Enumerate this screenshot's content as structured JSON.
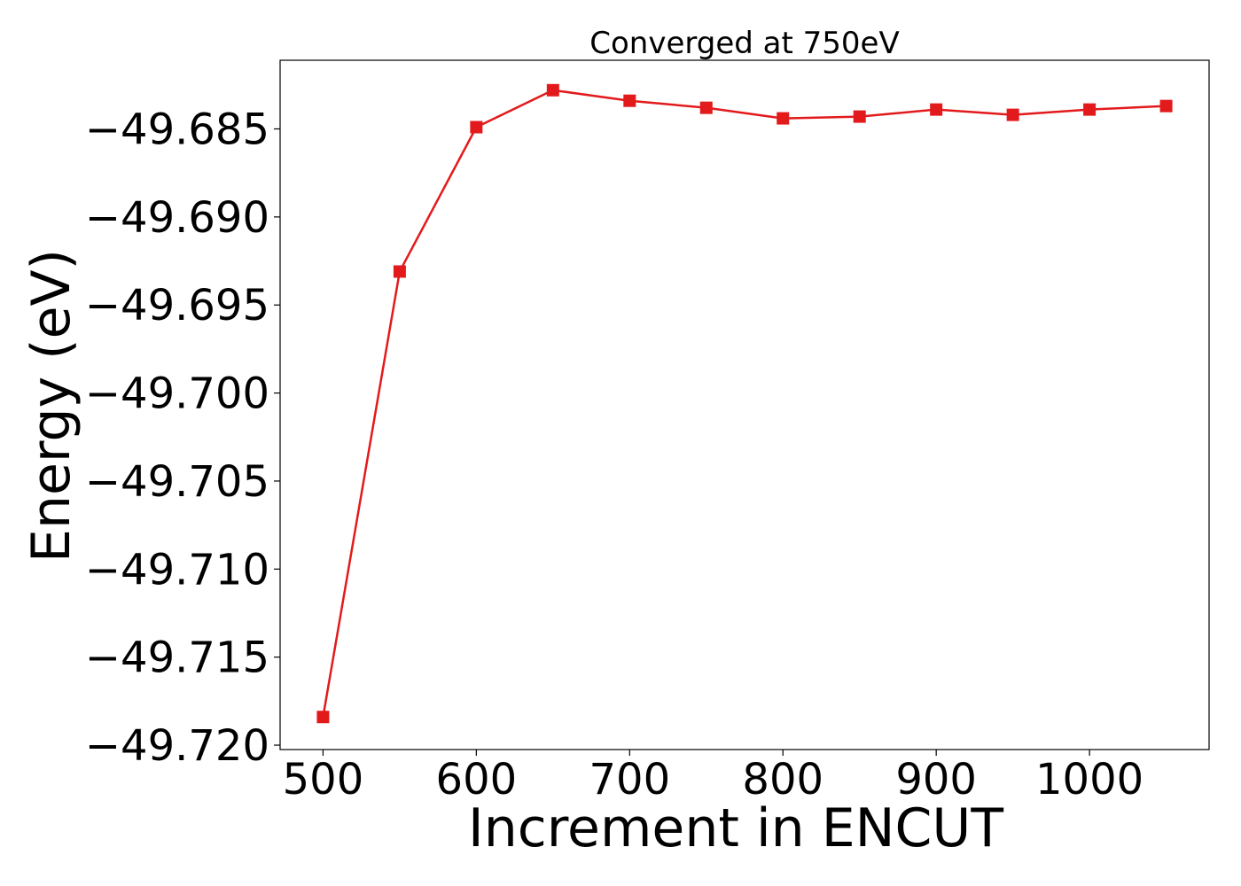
{
  "chart_data": {
    "type": "line",
    "title": "Converged at 750eV",
    "xlabel": "Increment in ENCUT",
    "ylabel": "Energy (eV)",
    "xlim": [
      472,
      1078
    ],
    "ylim": [
      -49.72025,
      -49.6811
    ],
    "xticks": [
      500,
      600,
      700,
      800,
      900,
      1000
    ],
    "xtick_labels": [
      "500",
      "600",
      "700",
      "800",
      "900",
      "1000"
    ],
    "yticks": [
      -49.685,
      -49.69,
      -49.695,
      -49.7,
      -49.705,
      -49.71,
      -49.715,
      -49.72
    ],
    "ytick_labels": [
      "−49.685",
      "−49.690",
      "−49.695",
      "−49.700",
      "−49.705",
      "−49.710",
      "−49.715",
      "−49.720"
    ],
    "grid": false,
    "series": [
      {
        "marker": "square",
        "color": "#e31a1c",
        "x": [
          500,
          550,
          600,
          650,
          700,
          750,
          800,
          850,
          900,
          950,
          1000,
          1050
        ],
        "y": [
          -49.7184,
          -49.6931,
          -49.6849,
          -49.6828,
          -49.6834,
          -49.6838,
          -49.6844,
          -49.6843,
          -49.6839,
          -49.6842,
          -49.6839,
          -49.6837
        ]
      }
    ]
  }
}
